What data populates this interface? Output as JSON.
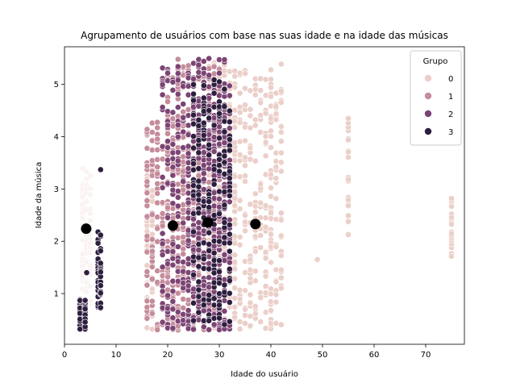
{
  "chart_data": {
    "type": "scatter",
    "title": "Agrupamento de usuários com base nas suas idade e na idade das músicas",
    "xlabel": "Idade do usuário",
    "ylabel": "Idade da música",
    "xlim": [
      0,
      77.5
    ],
    "ylim": [
      0.03,
      5.72
    ],
    "xticks": [
      0,
      10,
      20,
      30,
      40,
      50,
      60,
      70
    ],
    "yticks": [
      1,
      2,
      3,
      4,
      5
    ],
    "grid": false,
    "legend": {
      "title": "Grupo",
      "placement": "top-right"
    },
    "palette": {
      "0": "#ebcfc9",
      "1": "#c58c9b",
      "2": "#7c4474",
      "3": "#2d1e3e",
      "centroid": "#000000"
    },
    "series": [
      {
        "name": "0",
        "bands": [
          {
            "x": [
              3.5,
              5
            ],
            "y": [
              0.8,
              3.4
            ],
            "lightness": "very-light"
          },
          {
            "x": [
              16,
              17
            ],
            "y": [
              0.3,
              3.4
            ]
          },
          {
            "x": [
              28,
              33
            ],
            "y": [
              0.3,
              5.5
            ]
          },
          {
            "x": [
              33,
              40
            ],
            "y": [
              0.3,
              5.3
            ]
          },
          {
            "x": [
              40,
              42
            ],
            "y": [
              0.3,
              5.4
            ]
          },
          {
            "x": [
              55,
              55
            ],
            "y": [
              2.1,
              4.35
            ]
          },
          {
            "x": [
              75,
              75
            ],
            "y": [
              1.5,
              2.8
            ]
          }
        ],
        "points": [
          [
            49,
            1.65
          ],
          [
            75,
            2.82
          ],
          [
            55,
            4.35
          ]
        ]
      },
      {
        "name": "1",
        "bands": [
          {
            "x": [
              16,
              23
            ],
            "y": [
              0.3,
              4.4
            ]
          },
          {
            "x": [
              20,
              30
            ],
            "y": [
              0.3,
              5.5
            ]
          }
        ]
      },
      {
        "name": "2",
        "bands": [
          {
            "x": [
              19,
              32
            ],
            "y": [
              0.3,
              5.5
            ]
          },
          {
            "x": [
              24,
              31
            ],
            "y": [
              0.3,
              5.2
            ]
          }
        ]
      },
      {
        "name": "3",
        "bands": [
          {
            "x": [
              3,
              4
            ],
            "y": [
              0.3,
              0.9
            ]
          },
          {
            "x": [
              6.5,
              7
            ],
            "y": [
              0.7,
              2.2
            ]
          },
          {
            "x": [
              25,
              32
            ],
            "y": [
              0.4,
              5.1
            ]
          }
        ],
        "points": [
          [
            7,
            3.37
          ],
          [
            4.3,
            1.4
          ],
          [
            3.0,
            0.32
          ]
        ]
      }
    ],
    "centroids": [
      {
        "x": 4.2,
        "y": 2.24
      },
      {
        "x": 21,
        "y": 2.3
      },
      {
        "x": 27.8,
        "y": 2.36
      },
      {
        "x": 37,
        "y": 2.33
      }
    ]
  }
}
